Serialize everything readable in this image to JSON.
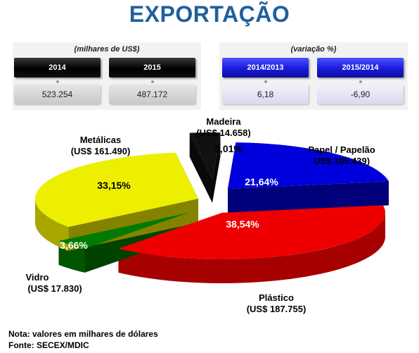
{
  "title": "EXPORTAÇÃO",
  "left_panel": {
    "caption": "(milhares de US$)",
    "headers": [
      "2014",
      "2015"
    ],
    "values": [
      "523.254",
      "487.172"
    ]
  },
  "right_panel": {
    "caption": "(variação %)",
    "headers": [
      "2014/2013",
      "2015/2014"
    ],
    "values": [
      "6,18",
      "-6,90"
    ]
  },
  "colors": {
    "title": "#1f5f9f",
    "header_dark": "#000000",
    "header_blue": "#1a1adc"
  },
  "chart_data": {
    "type": "pie",
    "slices": [
      {
        "name": "Madeira",
        "value_label": "(US$ 14.658)",
        "value": 14658,
        "percent": 3.01,
        "percent_label": "3,01%",
        "color": "#111111"
      },
      {
        "name": "Papel / Papelão",
        "value_label": "US$ 105.439)",
        "value": 105439,
        "percent": 21.64,
        "percent_label": "21,64%",
        "color": "#0000dd"
      },
      {
        "name": "Plástico",
        "value_label": "(US$ 187.755)",
        "value": 187755,
        "percent": 38.54,
        "percent_label": "38,54%",
        "color": "#ee0000"
      },
      {
        "name": "Vidro",
        "value_label": "(US$ 17.830)",
        "value": 17830,
        "percent": 3.66,
        "percent_label": "3,66%",
        "color": "#007a00"
      },
      {
        "name": "Metálicas",
        "value_label": "(US$ 161.490)",
        "value": 161490,
        "percent": 33.15,
        "percent_label": "33,15%",
        "color": "#eeee00"
      }
    ]
  },
  "notes": {
    "line1": "Nota: valores em milhares de dólares",
    "line2": "Fonte: SECEX/MDIC"
  }
}
